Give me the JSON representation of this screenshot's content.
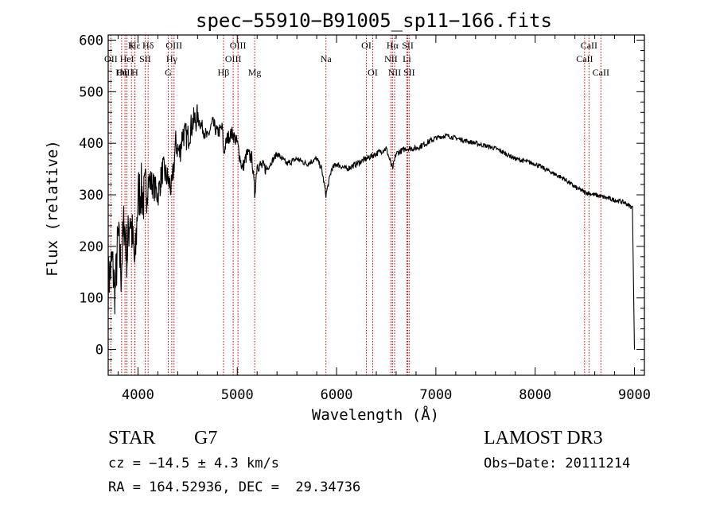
{
  "chart_data": {
    "type": "line",
    "title": "spec−55910−B91005_sp11−166.fits",
    "xlabel": "Wavelength (Å)",
    "ylabel": "Flux (relative)",
    "xlim": [
      3700,
      9100
    ],
    "ylim": [
      -50,
      610
    ],
    "xticks": [
      4000,
      5000,
      6000,
      7000,
      8000,
      9000
    ],
    "yticks": [
      0,
      100,
      200,
      300,
      400,
      500,
      600
    ],
    "grid": false,
    "line_color": "#000000",
    "marker_color": "#cc0000",
    "series": [
      {
        "x": [
          3700,
          3740,
          3770,
          3800,
          3830,
          3860,
          3890,
          3920,
          3950,
          3970,
          4000,
          4030,
          4060,
          4100,
          4150,
          4200,
          4250,
          4300,
          4340,
          4380,
          4420,
          4450,
          4500,
          4550,
          4600,
          4650,
          4700,
          4750,
          4800,
          4850,
          4861,
          4900,
          4950,
          5000,
          5050,
          5100,
          5150,
          5175,
          5200,
          5300,
          5400,
          5500,
          5600,
          5700,
          5800,
          5850,
          5893,
          5950,
          6000,
          6100,
          6200,
          6300,
          6400,
          6500,
          6563,
          6600,
          6700,
          6800,
          6900,
          7000,
          7100,
          7200,
          7300,
          7400,
          7500,
          7600,
          7700,
          7800,
          7900,
          8000,
          8100,
          8200,
          8300,
          8400,
          8500,
          8600,
          8700,
          8800,
          8900,
          8980,
          9000
        ],
        "y": [
          130,
          170,
          110,
          220,
          150,
          250,
          180,
          270,
          200,
          160,
          300,
          310,
          290,
          330,
          320,
          300,
          350,
          330,
          310,
          400,
          380,
          420,
          410,
          440,
          450,
          430,
          410,
          440,
          420,
          430,
          380,
          410,
          420,
          400,
          350,
          380,
          370,
          300,
          360,
          350,
          380,
          360,
          370,
          360,
          370,
          350,
          300,
          350,
          360,
          350,
          360,
          370,
          380,
          390,
          350,
          380,
          390,
          390,
          400,
          410,
          415,
          410,
          405,
          400,
          395,
          390,
          380,
          370,
          365,
          360,
          350,
          340,
          330,
          315,
          305,
          300,
          295,
          290,
          285,
          275,
          0
        ]
      }
    ],
    "line_markers": [
      {
        "label": "Hε",
        "x": 3970,
        "row": 1
      },
      {
        "label": "OII",
        "x": 3727,
        "row": 2
      },
      {
        "label": "OIII",
        "x": 3869,
        "row": 3
      },
      {
        "label": "K",
        "x": 3934,
        "row": 1
      },
      {
        "label": "HeI",
        "x": 3889,
        "row": 2
      },
      {
        "label": "Hη",
        "x": 3835,
        "row": 3
      },
      {
        "label": "SII",
        "x": 4072,
        "row": 2
      },
      {
        "label": "H",
        "x": 3968,
        "row": 3
      },
      {
        "label": "Hδ",
        "x": 4102,
        "row": 1
      },
      {
        "label": "OIII",
        "x": 4363,
        "row": 1
      },
      {
        "label": "Hγ",
        "x": 4340,
        "row": 2
      },
      {
        "label": "G",
        "x": 4305,
        "row": 3
      },
      {
        "label": "OIII",
        "x": 5007,
        "row": 1
      },
      {
        "label": "OIII",
        "x": 4959,
        "row": 2
      },
      {
        "label": "Hβ",
        "x": 4861,
        "row": 3
      },
      {
        "label": "Mg",
        "x": 5175,
        "row": 3
      },
      {
        "label": "Na",
        "x": 5893,
        "row": 2
      },
      {
        "label": "OI",
        "x": 6300,
        "row": 1
      },
      {
        "label": "OI",
        "x": 6364,
        "row": 3
      },
      {
        "label": "Hα",
        "x": 6563,
        "row": 1
      },
      {
        "label": "NII",
        "x": 6548,
        "row": 2
      },
      {
        "label": "NII",
        "x": 6584,
        "row": 3
      },
      {
        "label": "SII",
        "x": 6717,
        "row": 1
      },
      {
        "label": "Li",
        "x": 6708,
        "row": 2
      },
      {
        "label": "SII",
        "x": 6731,
        "row": 3
      },
      {
        "label": "CaII",
        "x": 8542,
        "row": 1
      },
      {
        "label": "CaII",
        "x": 8498,
        "row": 2
      },
      {
        "label": "CaII",
        "x": 8662,
        "row": 3
      }
    ]
  },
  "info": {
    "object_class": "STAR",
    "subclass": "G7",
    "survey": "LAMOST DR3",
    "redshift": "cz = −14.5 ± 4.3 km/s",
    "obs_date": "Obs−Date: 20111214",
    "coords": "RA = 164.52936, DEC =  29.34736"
  }
}
